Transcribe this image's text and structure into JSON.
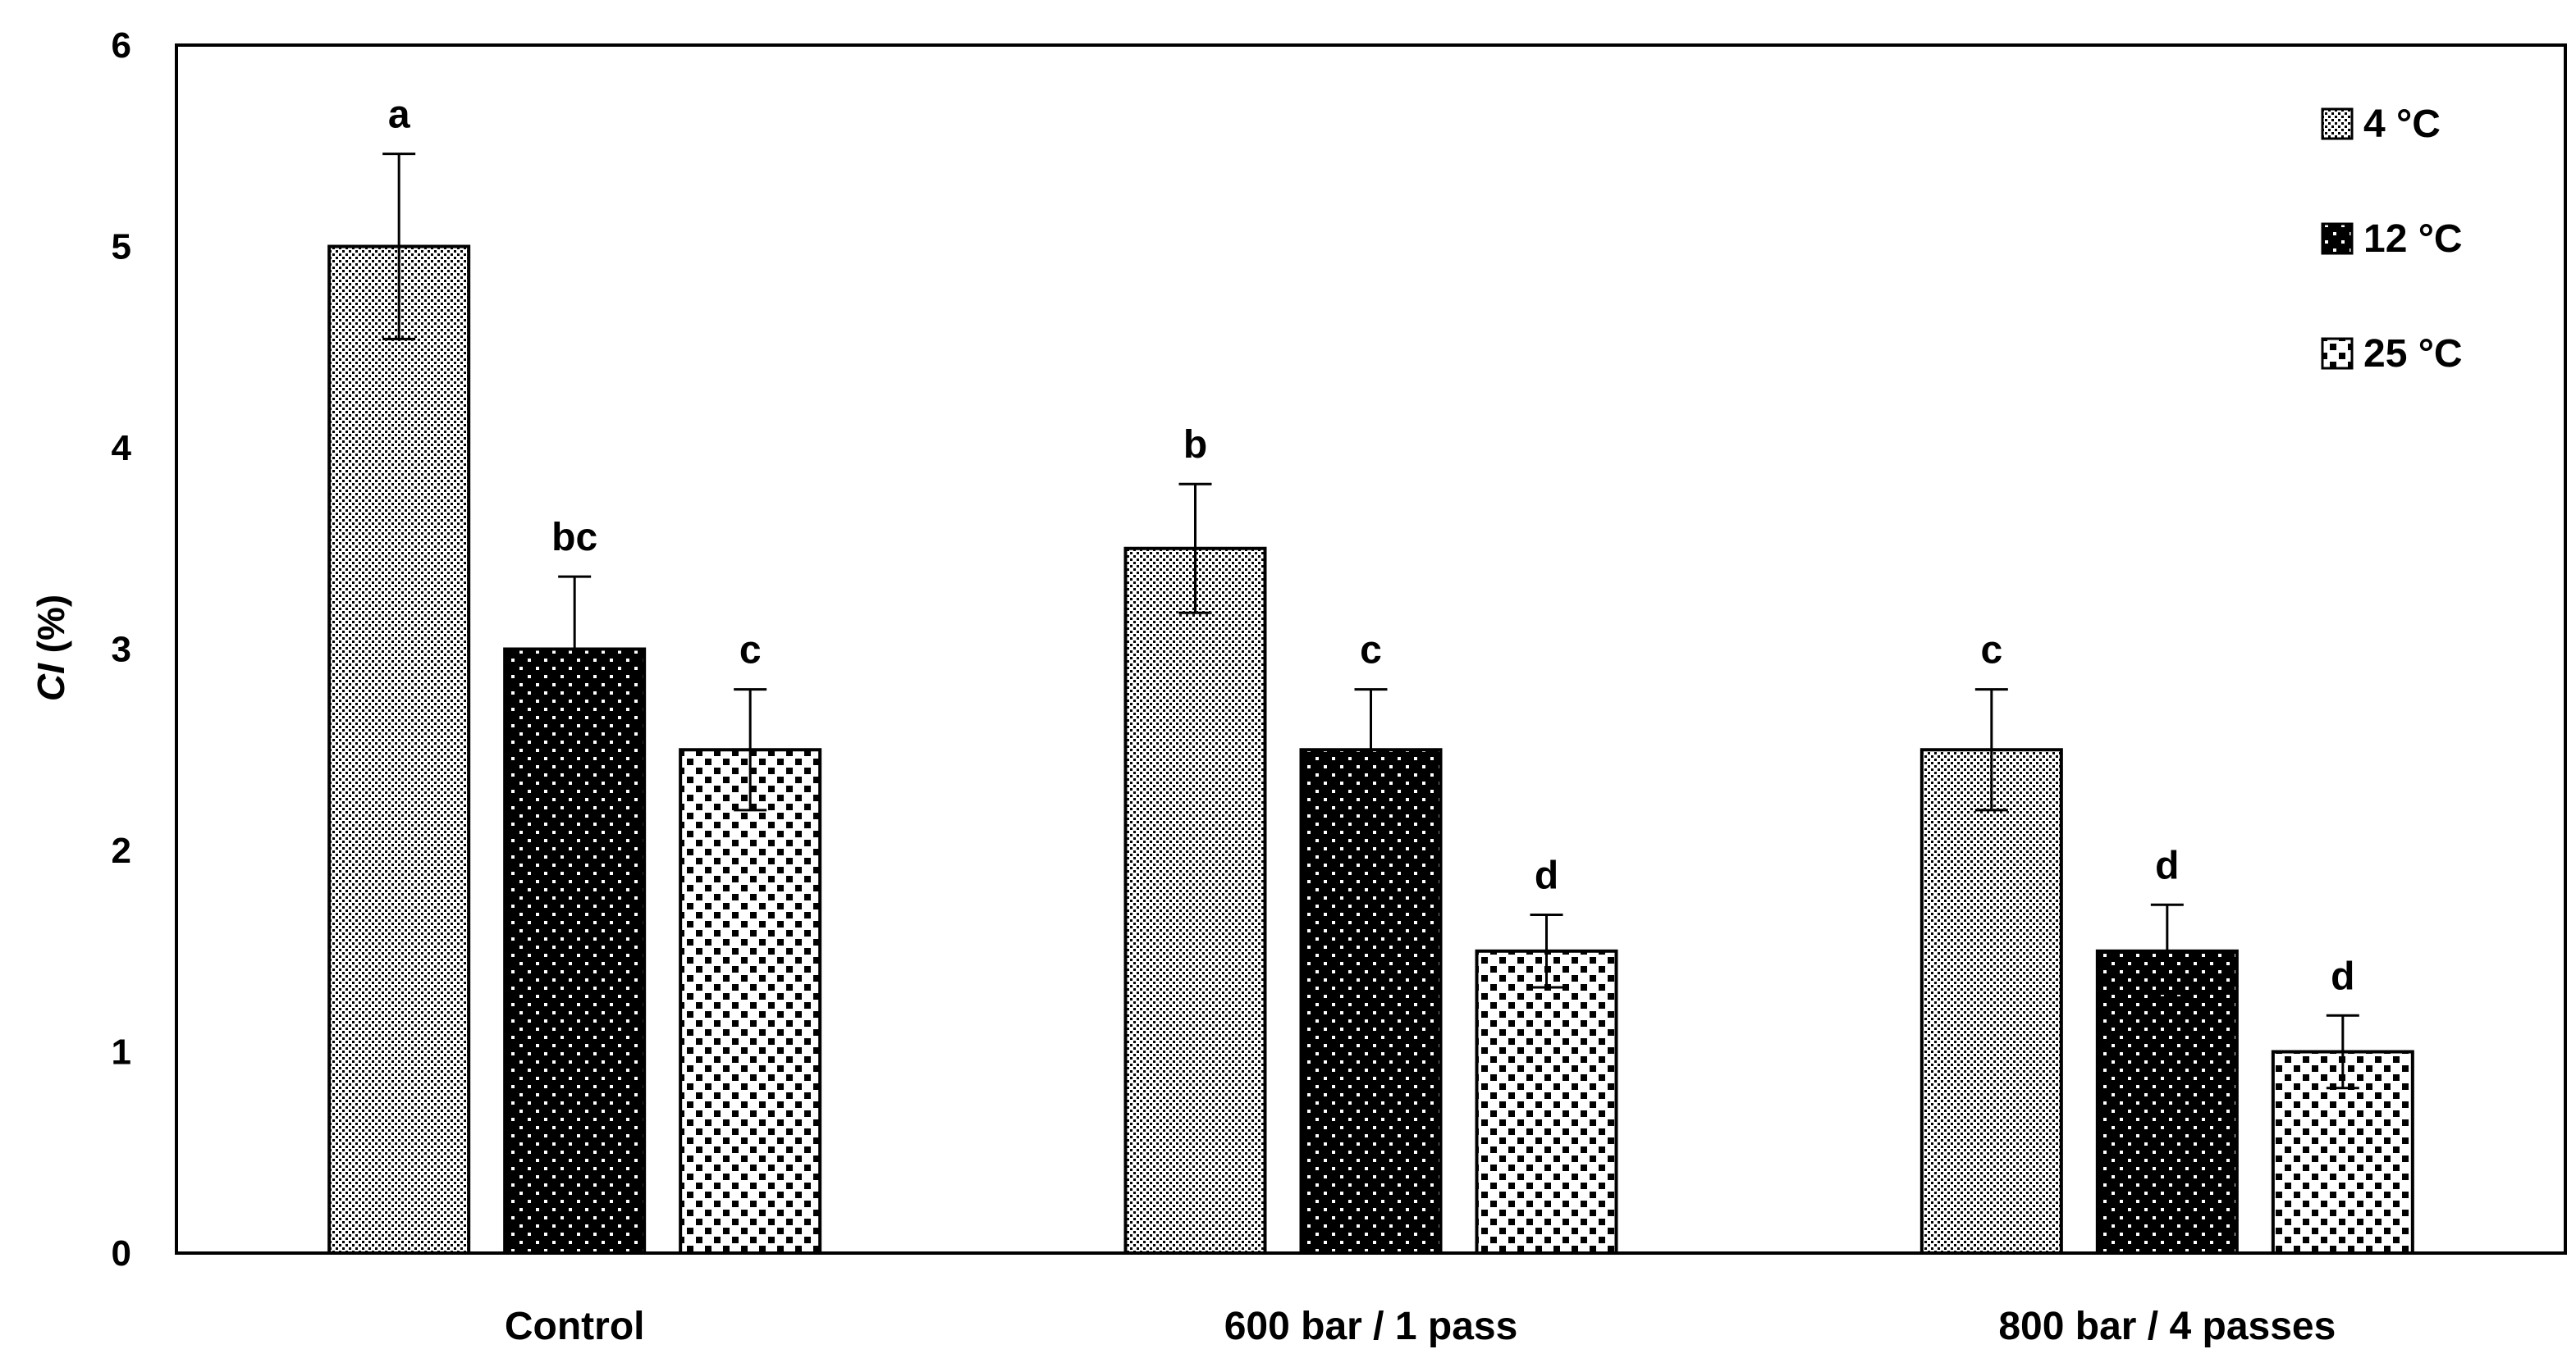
{
  "chart_data": {
    "type": "bar",
    "title": "",
    "xlabel": "",
    "ylabel": {
      "italic": "CI",
      "rest": " (%)"
    },
    "ylim": [
      0,
      6
    ],
    "yticks": [
      "0",
      "1",
      "2",
      "3",
      "4",
      "5",
      "6"
    ],
    "grid": false,
    "legend_position": "top-right",
    "categories": [
      "Control",
      "600 bar / 1 pass",
      "800 bar / 4 passes"
    ],
    "series": [
      {
        "name": "4 °C",
        "pattern": "fine-dots",
        "values": [
          5.0,
          3.5,
          2.5
        ],
        "errors": [
          0.46,
          0.32,
          0.3
        ],
        "letters": [
          "a",
          "b",
          "c"
        ]
      },
      {
        "name": "12 °C",
        "pattern": "black-dots",
        "values": [
          3.0,
          2.5,
          1.5
        ],
        "errors": [
          0.36,
          0.3,
          0.23
        ],
        "letters": [
          "bc",
          "c",
          "d"
        ]
      },
      {
        "name": "25 °C",
        "pattern": "checker",
        "values": [
          2.5,
          1.5,
          1.0
        ],
        "errors": [
          0.3,
          0.18,
          0.18
        ],
        "letters": [
          "c",
          "d",
          "d"
        ]
      }
    ]
  }
}
